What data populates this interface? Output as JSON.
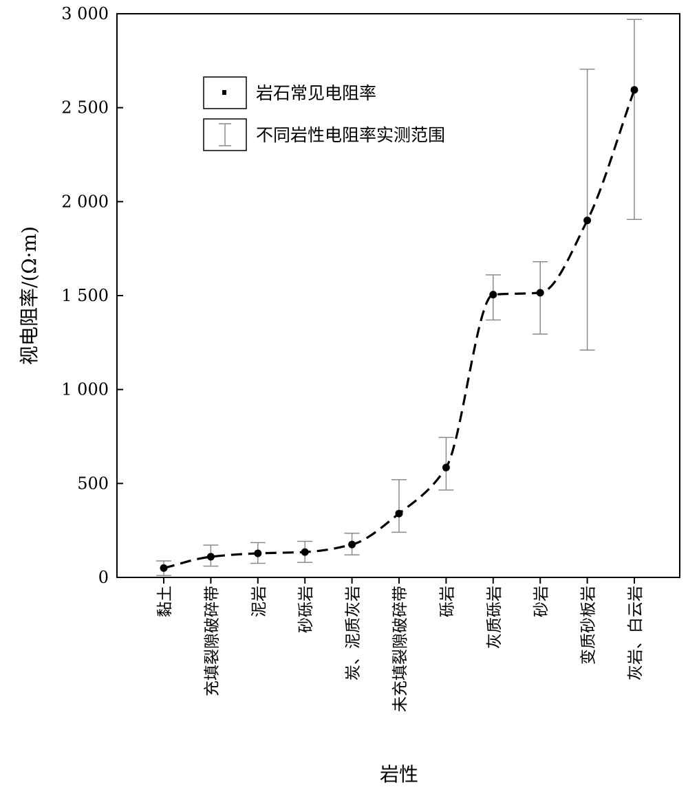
{
  "chart_data": {
    "type": "scatter",
    "title": "",
    "xlabel": "岩性",
    "ylabel": "视电阻率/(Ω·m)",
    "ylim": [
      0,
      3000
    ],
    "y_ticks": [
      0,
      500,
      1000,
      1500,
      2000,
      2500,
      3000
    ],
    "y_tick_labels": [
      "0",
      "500",
      "1 000",
      "1 500",
      "2 000",
      "2 500",
      "3 000"
    ],
    "categories": [
      "黏土",
      "充填裂隙破碎带",
      "泥岩",
      "砂砾岩",
      "炭、泥质灰岩",
      "未充填裂隙破碎带",
      "砾岩",
      "灰质砾岩",
      "砂岩",
      "变质砂板岩",
      "灰岩、白云岩"
    ],
    "series": [
      {
        "name": "岩石常见电阻率",
        "values": [
          50,
          110,
          128,
          135,
          175,
          340,
          585,
          1505,
          1515,
          1900,
          2595
        ]
      },
      {
        "name": "不同岩性电阻率实测范围",
        "low": [
          10,
          60,
          75,
          80,
          120,
          240,
          465,
          1370,
          1295,
          1210,
          1905
        ],
        "high": [
          88,
          172,
          185,
          192,
          235,
          520,
          745,
          1610,
          1680,
          2705,
          2970
        ]
      }
    ],
    "grid": false,
    "legend_position": "top-left",
    "colors": {
      "marker": "#000000",
      "errorbar": "#8a8a8a",
      "trend": "#000000"
    }
  }
}
